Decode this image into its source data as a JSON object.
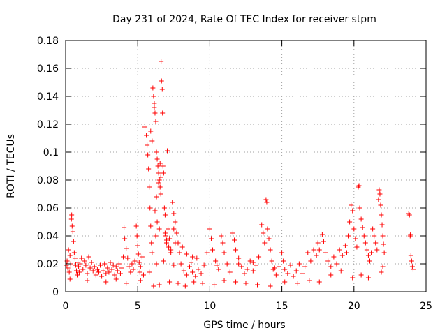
{
  "chart_data": {
    "type": "scatter",
    "title": "Day 231 of 2024, Rate Of TEC Index for receiver stpm",
    "xlabel": "GPS time / hours",
    "ylabel": "ROTI / TECUs",
    "xlim": [
      0,
      25
    ],
    "ylim": [
      0,
      0.18
    ],
    "grid": true,
    "marker": "+",
    "series_color": "#ff0000",
    "x_ticks": [
      {
        "value": 0,
        "label": "0"
      },
      {
        "value": 5,
        "label": "5"
      },
      {
        "value": 10,
        "label": "10"
      },
      {
        "value": 15,
        "label": "15"
      },
      {
        "value": 20,
        "label": "20"
      },
      {
        "value": 25,
        "label": "25"
      }
    ],
    "y_ticks": [
      {
        "value": 0,
        "label": "0"
      },
      {
        "value": 0.02,
        "label": "0.02"
      },
      {
        "value": 0.04,
        "label": "0.04"
      },
      {
        "value": 0.06,
        "label": "0.06"
      },
      {
        "value": 0.08,
        "label": "0.08"
      },
      {
        "value": 0.1,
        "label": "0.1"
      },
      {
        "value": 0.12,
        "label": "0.12"
      },
      {
        "value": 0.14,
        "label": "0.14"
      },
      {
        "value": 0.16,
        "label": "0.16"
      },
      {
        "value": 0.18,
        "label": "0.18"
      }
    ],
    "points": [
      [
        0.05,
        0.019
      ],
      [
        0.1,
        0.022
      ],
      [
        0.15,
        0.017
      ],
      [
        0.2,
        0.03
      ],
      [
        0.25,
        0.014
      ],
      [
        0.3,
        0.026
      ],
      [
        0.35,
        0.02
      ],
      [
        0.4,
        0.052
      ],
      [
        0.42,
        0.055
      ],
      [
        0.45,
        0.047
      ],
      [
        0.5,
        0.043
      ],
      [
        0.55,
        0.036
      ],
      [
        0.6,
        0.028
      ],
      [
        0.65,
        0.024
      ],
      [
        0.7,
        0.019
      ],
      [
        0.75,
        0.015
      ],
      [
        0.8,
        0.012
      ],
      [
        0.85,
        0.021
      ],
      [
        0.9,
        0.018
      ],
      [
        0.95,
        0.014
      ],
      [
        1.0,
        0.02
      ],
      [
        1.1,
        0.024
      ],
      [
        1.2,
        0.016
      ],
      [
        1.3,
        0.022
      ],
      [
        1.4,
        0.019
      ],
      [
        1.5,
        0.013
      ],
      [
        1.6,
        0.025
      ],
      [
        1.7,
        0.017
      ],
      [
        1.8,
        0.021
      ],
      [
        1.9,
        0.015
      ],
      [
        2.0,
        0.018
      ],
      [
        2.1,
        0.012
      ],
      [
        2.2,
        0.016
      ],
      [
        2.3,
        0.014
      ],
      [
        2.4,
        0.019
      ],
      [
        2.5,
        0.011
      ],
      [
        2.6,
        0.015
      ],
      [
        2.7,
        0.02
      ],
      [
        2.8,
        0.013
      ],
      [
        2.9,
        0.017
      ],
      [
        3.0,
        0.014
      ],
      [
        3.1,
        0.021
      ],
      [
        3.2,
        0.016
      ],
      [
        3.3,
        0.019
      ],
      [
        3.4,
        0.012
      ],
      [
        3.5,
        0.018
      ],
      [
        3.6,
        0.015
      ],
      [
        3.7,
        0.02
      ],
      [
        3.8,
        0.013
      ],
      [
        3.9,
        0.017
      ],
      [
        4.0,
        0.025
      ],
      [
        4.05,
        0.046
      ],
      [
        4.1,
        0.038
      ],
      [
        4.2,
        0.031
      ],
      [
        4.3,
        0.024
      ],
      [
        4.4,
        0.018
      ],
      [
        4.5,
        0.014
      ],
      [
        4.6,
        0.02
      ],
      [
        4.7,
        0.016
      ],
      [
        4.8,
        0.022
      ],
      [
        4.9,
        0.047
      ],
      [
        4.95,
        0.04
      ],
      [
        5.0,
        0.033
      ],
      [
        5.05,
        0.027
      ],
      [
        5.1,
        0.021
      ],
      [
        5.15,
        0.014
      ],
      [
        5.2,
        0.018
      ],
      [
        5.3,
        0.025
      ],
      [
        5.4,
        0.012
      ],
      [
        5.5,
        0.118
      ],
      [
        5.6,
        0.112
      ],
      [
        5.65,
        0.105
      ],
      [
        5.7,
        0.098
      ],
      [
        5.75,
        0.088
      ],
      [
        5.8,
        0.075
      ],
      [
        5.85,
        0.06
      ],
      [
        5.9,
        0.047
      ],
      [
        5.95,
        0.035
      ],
      [
        6.0,
        0.028
      ],
      [
        6.05,
        0.146
      ],
      [
        6.1,
        0.14
      ],
      [
        6.15,
        0.135
      ],
      [
        6.2,
        0.128
      ],
      [
        6.25,
        0.122
      ],
      [
        6.3,
        0.1
      ],
      [
        6.35,
        0.095
      ],
      [
        6.4,
        0.09
      ],
      [
        6.45,
        0.085
      ],
      [
        6.5,
        0.08
      ],
      [
        6.55,
        0.075
      ],
      [
        6.6,
        0.07
      ],
      [
        6.62,
        0.165
      ],
      [
        6.65,
        0.151
      ],
      [
        6.7,
        0.145
      ],
      [
        6.72,
        0.128
      ],
      [
        6.75,
        0.09
      ],
      [
        6.8,
        0.085
      ],
      [
        6.85,
        0.06
      ],
      [
        6.9,
        0.055
      ],
      [
        6.95,
        0.04
      ],
      [
        7.0,
        0.035
      ],
      [
        7.05,
        0.101
      ],
      [
        7.1,
        0.045
      ],
      [
        7.2,
        0.038
      ],
      [
        7.3,
        0.03
      ],
      [
        7.4,
        0.064
      ],
      [
        7.5,
        0.056
      ],
      [
        7.6,
        0.05
      ],
      [
        7.7,
        0.042
      ],
      [
        7.8,
        0.035
      ],
      [
        7.9,
        0.028
      ],
      [
        8.0,
        0.02
      ],
      [
        8.2,
        0.015
      ],
      [
        8.4,
        0.012
      ],
      [
        8.6,
        0.018
      ],
      [
        8.8,
        0.014
      ],
      [
        9.0,
        0.011
      ],
      [
        9.2,
        0.016
      ],
      [
        9.4,
        0.013
      ],
      [
        9.6,
        0.019
      ],
      [
        9.8,
        0.028
      ],
      [
        10.0,
        0.045
      ],
      [
        10.1,
        0.038
      ],
      [
        10.2,
        0.03
      ],
      [
        10.4,
        0.022
      ],
      [
        10.6,
        0.016
      ],
      [
        10.8,
        0.04
      ],
      [
        10.9,
        0.035
      ],
      [
        11.0,
        0.028
      ],
      [
        11.2,
        0.02
      ],
      [
        11.4,
        0.014
      ],
      [
        11.6,
        0.042
      ],
      [
        11.7,
        0.037
      ],
      [
        11.8,
        0.03
      ],
      [
        12.0,
        0.024
      ],
      [
        12.2,
        0.018
      ],
      [
        12.4,
        0.013
      ],
      [
        12.6,
        0.016
      ],
      [
        12.8,
        0.022
      ],
      [
        13.0,
        0.015
      ],
      [
        13.2,
        0.019
      ],
      [
        13.4,
        0.025
      ],
      [
        13.6,
        0.048
      ],
      [
        13.7,
        0.042
      ],
      [
        13.8,
        0.035
      ],
      [
        13.9,
        0.066
      ],
      [
        13.95,
        0.064
      ],
      [
        14.0,
        0.045
      ],
      [
        14.1,
        0.038
      ],
      [
        14.2,
        0.03
      ],
      [
        14.3,
        0.022
      ],
      [
        14.4,
        0.016
      ],
      [
        14.6,
        0.012
      ],
      [
        14.8,
        0.018
      ],
      [
        15.0,
        0.028
      ],
      [
        15.1,
        0.022
      ],
      [
        15.2,
        0.016
      ],
      [
        15.4,
        0.013
      ],
      [
        15.6,
        0.019
      ],
      [
        15.8,
        0.011
      ],
      [
        16.0,
        0.015
      ],
      [
        16.2,
        0.02
      ],
      [
        16.4,
        0.013
      ],
      [
        16.6,
        0.018
      ],
      [
        16.8,
        0.028
      ],
      [
        17.0,
        0.022
      ],
      [
        17.2,
        0.03
      ],
      [
        17.4,
        0.026
      ],
      [
        17.5,
        0.035
      ],
      [
        17.6,
        0.03
      ],
      [
        17.8,
        0.041
      ],
      [
        17.9,
        0.036
      ],
      [
        18.0,
        0.028
      ],
      [
        18.2,
        0.022
      ],
      [
        18.4,
        0.018
      ],
      [
        18.6,
        0.025
      ],
      [
        18.8,
        0.02
      ],
      [
        19.0,
        0.03
      ],
      [
        19.2,
        0.026
      ],
      [
        19.4,
        0.033
      ],
      [
        19.5,
        0.028
      ],
      [
        19.6,
        0.04
      ],
      [
        19.7,
        0.05
      ],
      [
        19.8,
        0.062
      ],
      [
        19.9,
        0.058
      ],
      [
        20.0,
        0.045
      ],
      [
        20.1,
        0.038
      ],
      [
        20.2,
        0.032
      ],
      [
        20.3,
        0.075
      ],
      [
        20.35,
        0.076
      ],
      [
        20.4,
        0.06
      ],
      [
        20.5,
        0.052
      ],
      [
        20.6,
        0.046
      ],
      [
        20.7,
        0.04
      ],
      [
        20.8,
        0.035
      ],
      [
        20.9,
        0.03
      ],
      [
        21.0,
        0.026
      ],
      [
        21.1,
        0.022
      ],
      [
        21.2,
        0.028
      ],
      [
        21.3,
        0.045
      ],
      [
        21.4,
        0.04
      ],
      [
        21.5,
        0.035
      ],
      [
        21.6,
        0.03
      ],
      [
        21.7,
        0.066
      ],
      [
        21.75,
        0.073
      ],
      [
        21.8,
        0.07
      ],
      [
        21.85,
        0.062
      ],
      [
        21.9,
        0.055
      ],
      [
        21.95,
        0.048
      ],
      [
        22.0,
        0.04
      ],
      [
        22.05,
        0.034
      ],
      [
        22.1,
        0.028
      ],
      [
        23.8,
        0.056
      ],
      [
        23.85,
        0.055
      ],
      [
        23.9,
        0.04
      ],
      [
        23.92,
        0.041
      ],
      [
        23.95,
        0.026
      ],
      [
        24.0,
        0.022
      ],
      [
        24.05,
        0.018
      ],
      [
        24.1,
        0.016
      ],
      [
        0.3,
        0.009
      ],
      [
        1.5,
        0.008
      ],
      [
        2.8,
        0.007
      ],
      [
        3.5,
        0.009
      ],
      [
        4.2,
        0.006
      ],
      [
        5.2,
        0.008
      ],
      [
        6.1,
        0.004
      ],
      [
        6.5,
        0.005
      ],
      [
        7.2,
        0.007
      ],
      [
        7.8,
        0.006
      ],
      [
        8.3,
        0.004
      ],
      [
        8.9,
        0.007
      ],
      [
        9.5,
        0.006
      ],
      [
        10.3,
        0.005
      ],
      [
        11.0,
        0.008
      ],
      [
        11.8,
        0.007
      ],
      [
        12.5,
        0.006
      ],
      [
        13.3,
        0.005
      ],
      [
        14.2,
        0.004
      ],
      [
        15.2,
        0.007
      ],
      [
        16.1,
        0.006
      ],
      [
        16.9,
        0.008
      ],
      [
        17.6,
        0.007
      ],
      [
        18.4,
        0.012
      ],
      [
        19.1,
        0.015
      ],
      [
        20.5,
        0.012
      ],
      [
        21.0,
        0.01
      ],
      [
        21.9,
        0.014
      ],
      [
        22.0,
        0.018
      ],
      [
        19.9,
        0.01
      ],
      [
        5.8,
        0.014
      ],
      [
        6.3,
        0.02
      ],
      [
        6.8,
        0.022
      ],
      [
        7.5,
        0.019
      ],
      [
        8.7,
        0.021
      ],
      [
        9.1,
        0.024
      ],
      [
        10.5,
        0.019
      ],
      [
        12.0,
        0.02
      ],
      [
        13.0,
        0.021
      ],
      [
        14.5,
        0.017
      ],
      [
        5.9,
        0.115
      ],
      [
        6.0,
        0.108
      ],
      [
        6.15,
        0.132
      ],
      [
        6.55,
        0.092
      ],
      [
        6.6,
        0.082
      ],
      [
        6.45,
        0.078
      ],
      [
        6.3,
        0.068
      ],
      [
        6.2,
        0.058
      ],
      [
        6.35,
        0.05
      ],
      [
        6.5,
        0.045
      ],
      [
        6.25,
        0.04
      ],
      [
        6.9,
        0.042
      ],
      [
        7.0,
        0.037
      ],
      [
        7.15,
        0.032
      ],
      [
        7.3,
        0.028
      ],
      [
        7.5,
        0.045
      ],
      [
        7.6,
        0.035
      ],
      [
        8.1,
        0.032
      ],
      [
        8.4,
        0.027
      ],
      [
        8.8,
        0.025
      ]
    ]
  }
}
